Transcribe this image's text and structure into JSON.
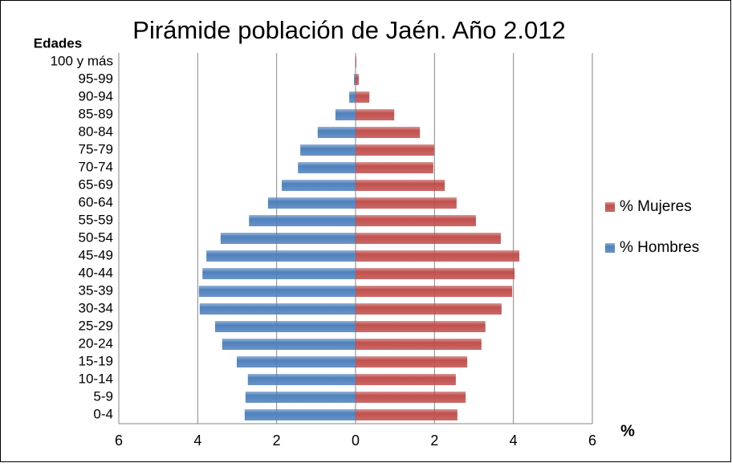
{
  "chart_data": {
    "type": "pyramid",
    "title": "Pirámide población de Jaén. Año 2.012",
    "y_label": "Edades",
    "x_label": "%",
    "categories": [
      "0-4",
      "5-9",
      "10-14",
      "15-19",
      "20-24",
      "25-29",
      "30-34",
      "35-39",
      "40-44",
      "45-49",
      "50-54",
      "55-59",
      "60-64",
      "65-69",
      "70-74",
      "75-79",
      "80-84",
      "85-89",
      "90-94",
      "95-99",
      "100 y más"
    ],
    "series": [
      {
        "name": "% Hombres",
        "color": "#4f81bd",
        "values": [
          -2.81,
          -2.79,
          -2.73,
          -3.01,
          -3.38,
          -3.56,
          -3.95,
          -3.97,
          -3.88,
          -3.78,
          -3.42,
          -2.7,
          -2.22,
          -1.87,
          -1.46,
          -1.4,
          -0.96,
          -0.51,
          -0.16,
          -0.04,
          -0.01
        ]
      },
      {
        "name": "% Mujeres",
        "color": "#c0504d",
        "values": [
          2.58,
          2.79,
          2.54,
          2.83,
          3.19,
          3.29,
          3.7,
          3.97,
          4.03,
          4.15,
          3.68,
          3.05,
          2.56,
          2.26,
          1.97,
          1.99,
          1.63,
          0.98,
          0.35,
          0.08,
          0.02
        ]
      }
    ],
    "xlim": [
      -6,
      6
    ],
    "xticks": [
      {
        "value": -6,
        "label": "6"
      },
      {
        "value": -4,
        "label": "4"
      },
      {
        "value": -2,
        "label": "2"
      },
      0,
      2,
      4,
      6
    ],
    "grid": true,
    "legend": "right"
  }
}
